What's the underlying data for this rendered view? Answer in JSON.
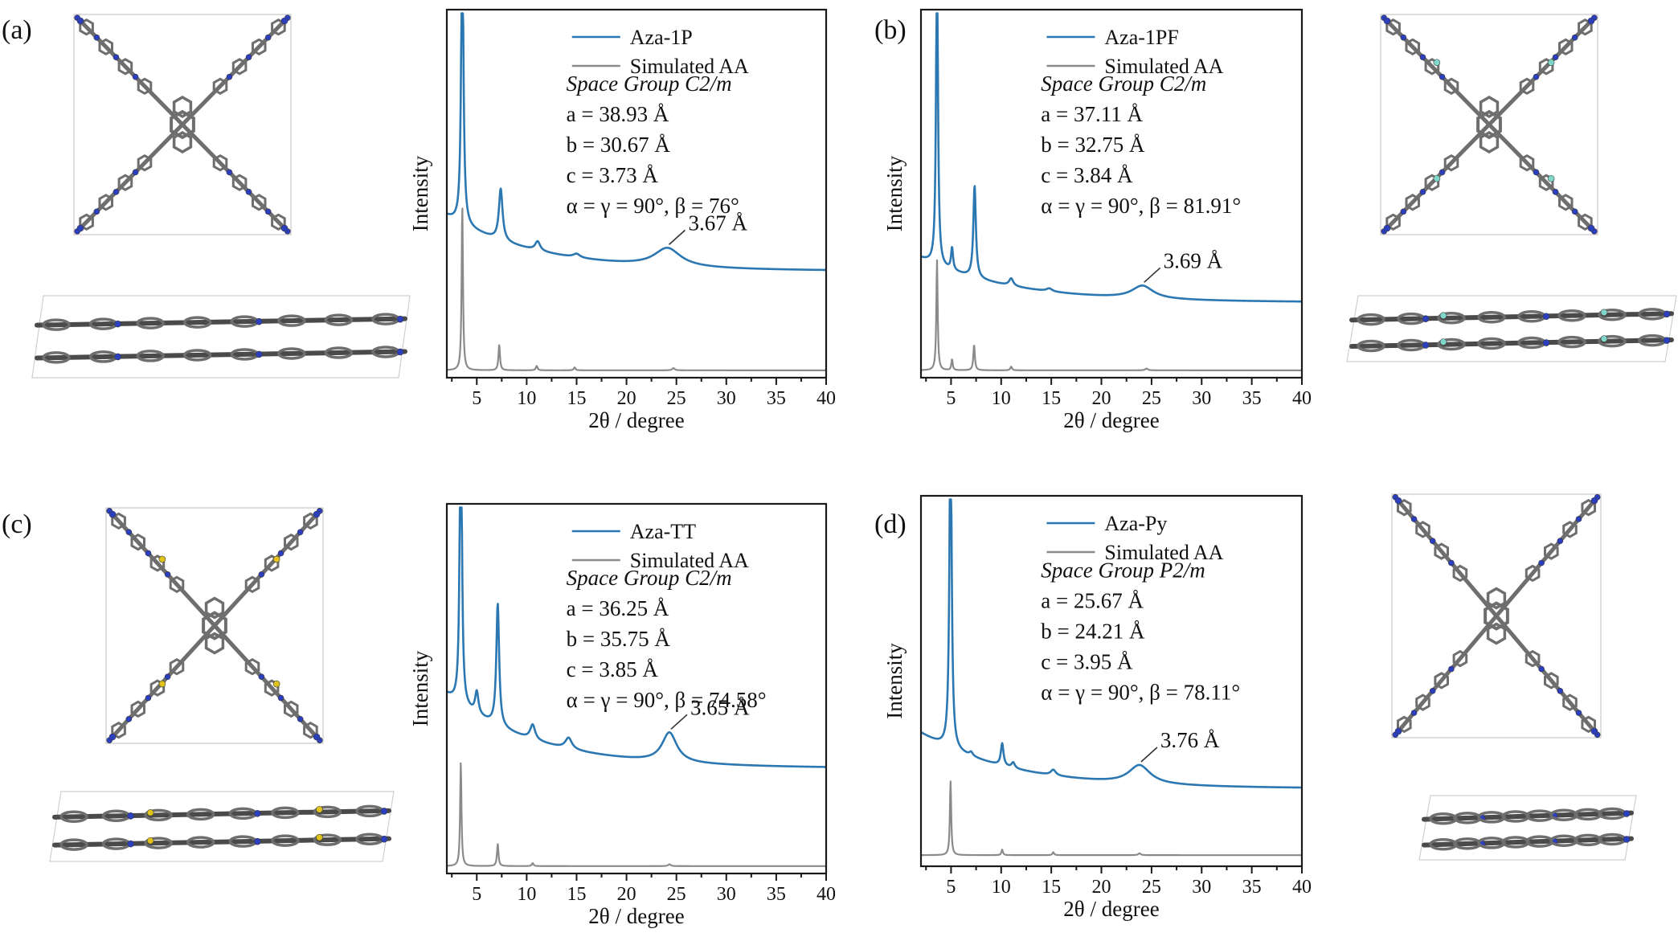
{
  "figure": {
    "colors": {
      "experimental": "#2b77b1",
      "simulated": "#8a8a8a",
      "axis": "#1a1a1a"
    },
    "panels": [
      {
        "letter": "(a)",
        "structure_colors": [
          "#6e6e6e",
          "#2b3fbf"
        ]
      },
      {
        "letter": "(b)",
        "structure_colors": [
          "#6e6e6e",
          "#2b3fbf",
          "#7fd6c9"
        ]
      },
      {
        "letter": "(c)",
        "structure_colors": [
          "#6e6e6e",
          "#2b3fbf",
          "#e0c21a"
        ]
      },
      {
        "letter": "(d)",
        "structure_colors": [
          "#6e6e6e",
          "#2b3fbf"
        ]
      }
    ]
  },
  "chart_data": [
    {
      "type": "line",
      "panel": "(a)",
      "xlabel": "2θ / degree",
      "ylabel": "Intensity",
      "xlim": [
        2,
        40
      ],
      "xticks": [
        5,
        10,
        15,
        20,
        25,
        30,
        35,
        40
      ],
      "yticks_shown": false,
      "legend_placement": "top-right",
      "series": [
        {
          "name": "Aza-1P",
          "baseline": 0.29,
          "tail": 0.15,
          "peaks": [
            [
              3.55,
              0.84,
              0.13
            ],
            [
              7.4,
              0.14,
              0.22
            ],
            [
              11.1,
              0.025,
              0.3
            ],
            [
              15.0,
              0.01,
              0.4
            ],
            [
              24.1,
              0.05,
              1.6
            ]
          ]
        },
        {
          "name": "Simulated AA",
          "baseline": 0.02,
          "tail": 0.0,
          "peaks": [
            [
              3.55,
              0.45,
              0.08
            ],
            [
              7.25,
              0.07,
              0.09
            ],
            [
              11.0,
              0.012,
              0.1
            ],
            [
              14.8,
              0.008,
              0.1
            ],
            [
              24.7,
              0.006,
              0.15
            ]
          ]
        }
      ],
      "info": {
        "space_group_label": "Space Group",
        "space_group": "C2/m",
        "a": "a = 38.93 Å",
        "b": "b = 30.67 Å",
        "c": "c = 3.73 Å",
        "angles": "α = γ = 90°,  β = 76°"
      },
      "annotation": {
        "text": "3.67 Å",
        "x": 24.1
      }
    },
    {
      "type": "line",
      "panel": "(b)",
      "xlabel": "2θ / degree",
      "ylabel": "Intensity",
      "xlim": [
        2,
        40
      ],
      "xticks": [
        5,
        10,
        15,
        20,
        25,
        30,
        35,
        40
      ],
      "yticks_shown": false,
      "legend_placement": "top-right",
      "series": [
        {
          "name": "Aza-1PF",
          "baseline": 0.205,
          "tail": 0.12,
          "peaks": [
            [
              3.6,
              0.88,
              0.11
            ],
            [
              5.1,
              0.06,
              0.12
            ],
            [
              7.35,
              0.25,
              0.15
            ],
            [
              11.0,
              0.02,
              0.25
            ],
            [
              14.8,
              0.008,
              0.35
            ],
            [
              24.1,
              0.035,
              1.3
            ]
          ]
        },
        {
          "name": "Simulated AA",
          "baseline": 0.02,
          "tail": 0.0,
          "peaks": [
            [
              3.6,
              0.3,
              0.08
            ],
            [
              5.1,
              0.03,
              0.08
            ],
            [
              7.3,
              0.07,
              0.09
            ],
            [
              11.0,
              0.01,
              0.1
            ],
            [
              24.5,
              0.005,
              0.15
            ]
          ]
        }
      ],
      "info": {
        "space_group_label": "Space Group",
        "space_group": "C2/m",
        "a": "a = 37.11 Å",
        "b": "b = 32.75 Å",
        "c": "c = 3.84 Å",
        "angles": "α = γ = 90°,  β = 81.91°"
      },
      "annotation": {
        "text": "3.69 Å",
        "x": 24.1
      }
    },
    {
      "type": "line",
      "panel": "(c)",
      "xlabel": "2θ / degree",
      "ylabel": "Intensity",
      "xlim": [
        2,
        40
      ],
      "xticks": [
        5,
        10,
        15,
        20,
        25,
        30,
        35,
        40
      ],
      "yticks_shown": false,
      "legend_placement": "top-right",
      "series": [
        {
          "name": "Aza-TT",
          "baseline": 0.285,
          "tail": 0.2,
          "peaks": [
            [
              3.4,
              0.93,
              0.12
            ],
            [
              5.0,
              0.06,
              0.2
            ],
            [
              7.1,
              0.33,
              0.17
            ],
            [
              10.6,
              0.04,
              0.3
            ],
            [
              14.2,
              0.03,
              0.4
            ],
            [
              24.3,
              0.08,
              0.9
            ]
          ]
        },
        {
          "name": "Simulated AA",
          "baseline": 0.02,
          "tail": 0.0,
          "peaks": [
            [
              3.4,
              0.28,
              0.08
            ],
            [
              7.1,
              0.06,
              0.09
            ],
            [
              10.6,
              0.008,
              0.1
            ],
            [
              24.3,
              0.005,
              0.15
            ]
          ]
        }
      ],
      "info": {
        "space_group_label": "Space Group",
        "space_group": "C2/m",
        "a": "a = 36.25 Å",
        "b": "b = 35.75 Å",
        "c": "c = 3.85 Å",
        "angles": "α = γ = 90°,  β = 74.58°"
      },
      "annotation": {
        "text": "3.65 Å",
        "x": 24.3
      }
    },
    {
      "type": "line",
      "panel": "(d)",
      "xlabel": "2θ / degree",
      "ylabel": "Intensity",
      "xlim": [
        2,
        40
      ],
      "xticks": [
        5,
        10,
        15,
        20,
        25,
        30,
        35,
        40
      ],
      "yticks_shown": false,
      "legend_placement": "top-right",
      "series": [
        {
          "name": "Aza-Py",
          "baseline": 0.21,
          "tail": 0.15,
          "peaks": [
            [
              4.95,
              0.93,
              0.13
            ],
            [
              7.0,
              0.01,
              0.2
            ],
            [
              10.1,
              0.06,
              0.16
            ],
            [
              11.2,
              0.015,
              0.2
            ],
            [
              15.2,
              0.015,
              0.3
            ],
            [
              23.8,
              0.05,
              1.3
            ]
          ]
        },
        {
          "name": "Simulated AA",
          "baseline": 0.03,
          "tail": 0.0,
          "peaks": [
            [
              4.95,
              0.2,
              0.08
            ],
            [
              10.1,
              0.015,
              0.09
            ],
            [
              15.2,
              0.008,
              0.1
            ],
            [
              23.8,
              0.005,
              0.15
            ]
          ]
        }
      ],
      "info": {
        "space_group_label": "Space Group",
        "space_group": "P2/m",
        "a": "a = 25.67 Å",
        "b": "b = 24.21 Å",
        "c": "c = 3.95 Å",
        "angles": "α = γ = 90°,  β = 78.11°"
      },
      "annotation": {
        "text": "3.76 Å",
        "x": 23.8
      }
    }
  ]
}
